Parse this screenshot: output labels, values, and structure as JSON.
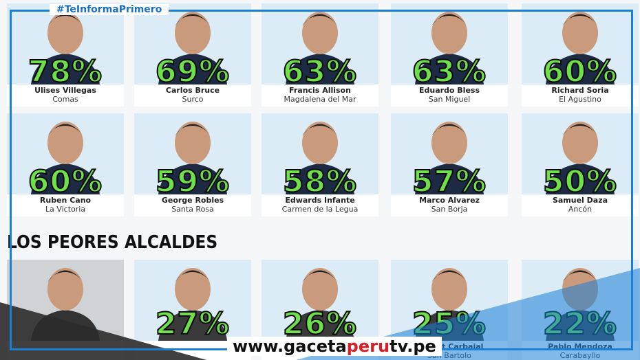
{
  "header": {
    "hashtag": "#TeInformaPrimero"
  },
  "best": [
    [
      {
        "percent": "78%",
        "name": "Ulises Villegas",
        "district": "Comas"
      },
      {
        "percent": "69%",
        "name": "Carlos Bruce",
        "district": "Surco"
      },
      {
        "percent": "63%",
        "name": "Francis Allison",
        "district": "Magdalena del Mar"
      },
      {
        "percent": "63%",
        "name": "Eduardo Bless",
        "district": "San Miguel"
      },
      {
        "percent": "60%",
        "name": "Richard Soria",
        "district": "El Agustino"
      }
    ],
    [
      {
        "percent": "60%",
        "name": "Ruben Cano",
        "district": "La Victoria"
      },
      {
        "percent": "59%",
        "name": "George Robles",
        "district": "Santa Rosa"
      },
      {
        "percent": "58%",
        "name": "Edwards Infante",
        "district": "Carmen de la Legua"
      },
      {
        "percent": "57%",
        "name": "Marco Alvarez",
        "district": "San Borja"
      },
      {
        "percent": "50%",
        "name": "Samuel Daza",
        "district": "Ancón"
      }
    ]
  ],
  "section_title": "LOS PEORES ALCALDES",
  "worst": [
    {
      "percent": "27%"
    },
    {
      "percent": "26%"
    },
    {
      "percent": "25%",
      "name": "August Carbajal",
      "district": "San Bartolo"
    },
    {
      "percent": "22%",
      "name": "Pablo Mendoza",
      "district": "Carabayllo"
    }
  ],
  "footer": {
    "parts": [
      "www.",
      "gaceta",
      "peru",
      "tv",
      ".pe"
    ]
  }
}
